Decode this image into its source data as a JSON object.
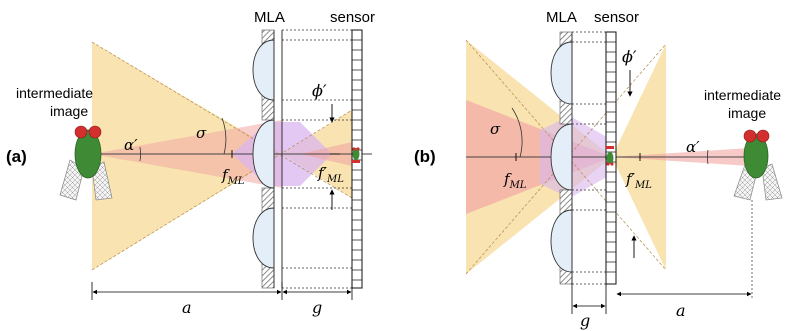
{
  "panel_a": {
    "panel_label": "(a)",
    "mla_label": "MLA",
    "sensor_label": "sensor",
    "object_label_line1": "intermediate",
    "object_label_line2": "image",
    "alpha_label": "α′",
    "sigma_label": "σ",
    "phi_label": "ϕ′",
    "f_label": "f",
    "f_sub": "ML",
    "fprime_label": "f′",
    "fprime_sub": "ML",
    "a_label": "a",
    "g_label": "g"
  },
  "panel_b": {
    "panel_label": "(b)",
    "mla_label": "MLA",
    "sensor_label": "sensor",
    "object_label_line1": "intermediate",
    "object_label_line2": "image",
    "alpha_label": "α′",
    "sigma_label": "σ",
    "phi_label": "ϕ′",
    "f_label": "f",
    "f_sub": "ML",
    "fprime_label": "f′",
    "fprime_sub": "ML",
    "a_label": "a",
    "g_label": "g"
  },
  "colors": {
    "cone_yellow": "#f7e0a8",
    "cone_pink": "#f2a7a4",
    "cone_violet": "#d9b5ef",
    "lens_fill": "#e4eef9",
    "fly_body": "#3f8a34",
    "fly_eye": "#d32f2f",
    "wing": "#f1f1f1",
    "hatch": "#777777"
  }
}
